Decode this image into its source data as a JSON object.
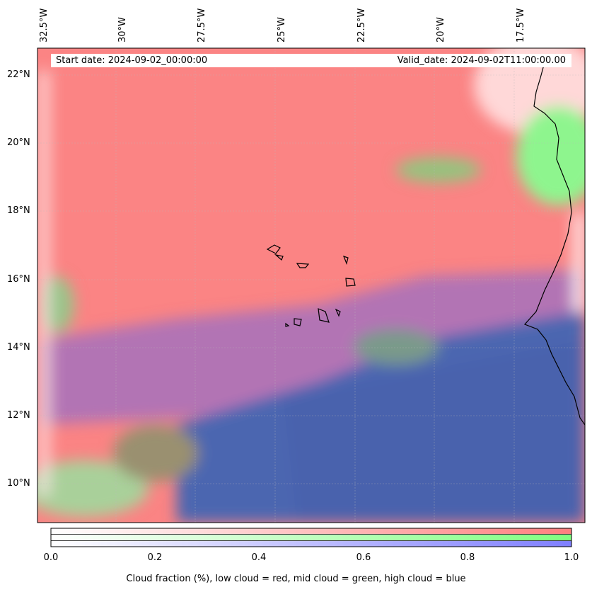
{
  "map": {
    "start_date": "Start date: 2024-09-02_00:00:00",
    "valid_date": "Valid_date: 2024-09-02T11:00:00.00",
    "lon_labels": [
      "32.5°W",
      "30°W",
      "27.5°W",
      "25°W",
      "22.5°W",
      "20°W",
      "17.5°W"
    ],
    "lat_labels": [
      "22°N",
      "20°N",
      "18°N",
      "16°N",
      "14°N",
      "12°N",
      "10°N"
    ]
  },
  "legend": {
    "ticks": [
      "0.0",
      "0.2",
      "0.4",
      "0.6",
      "0.8",
      "1.0"
    ],
    "label": "Cloud fraction (%), low cloud = red, mid cloud = green, high cloud = blue",
    "colors": {
      "low": "#ff7f7f",
      "mid": "#7fff7f",
      "high": "#7f7fff"
    }
  }
}
